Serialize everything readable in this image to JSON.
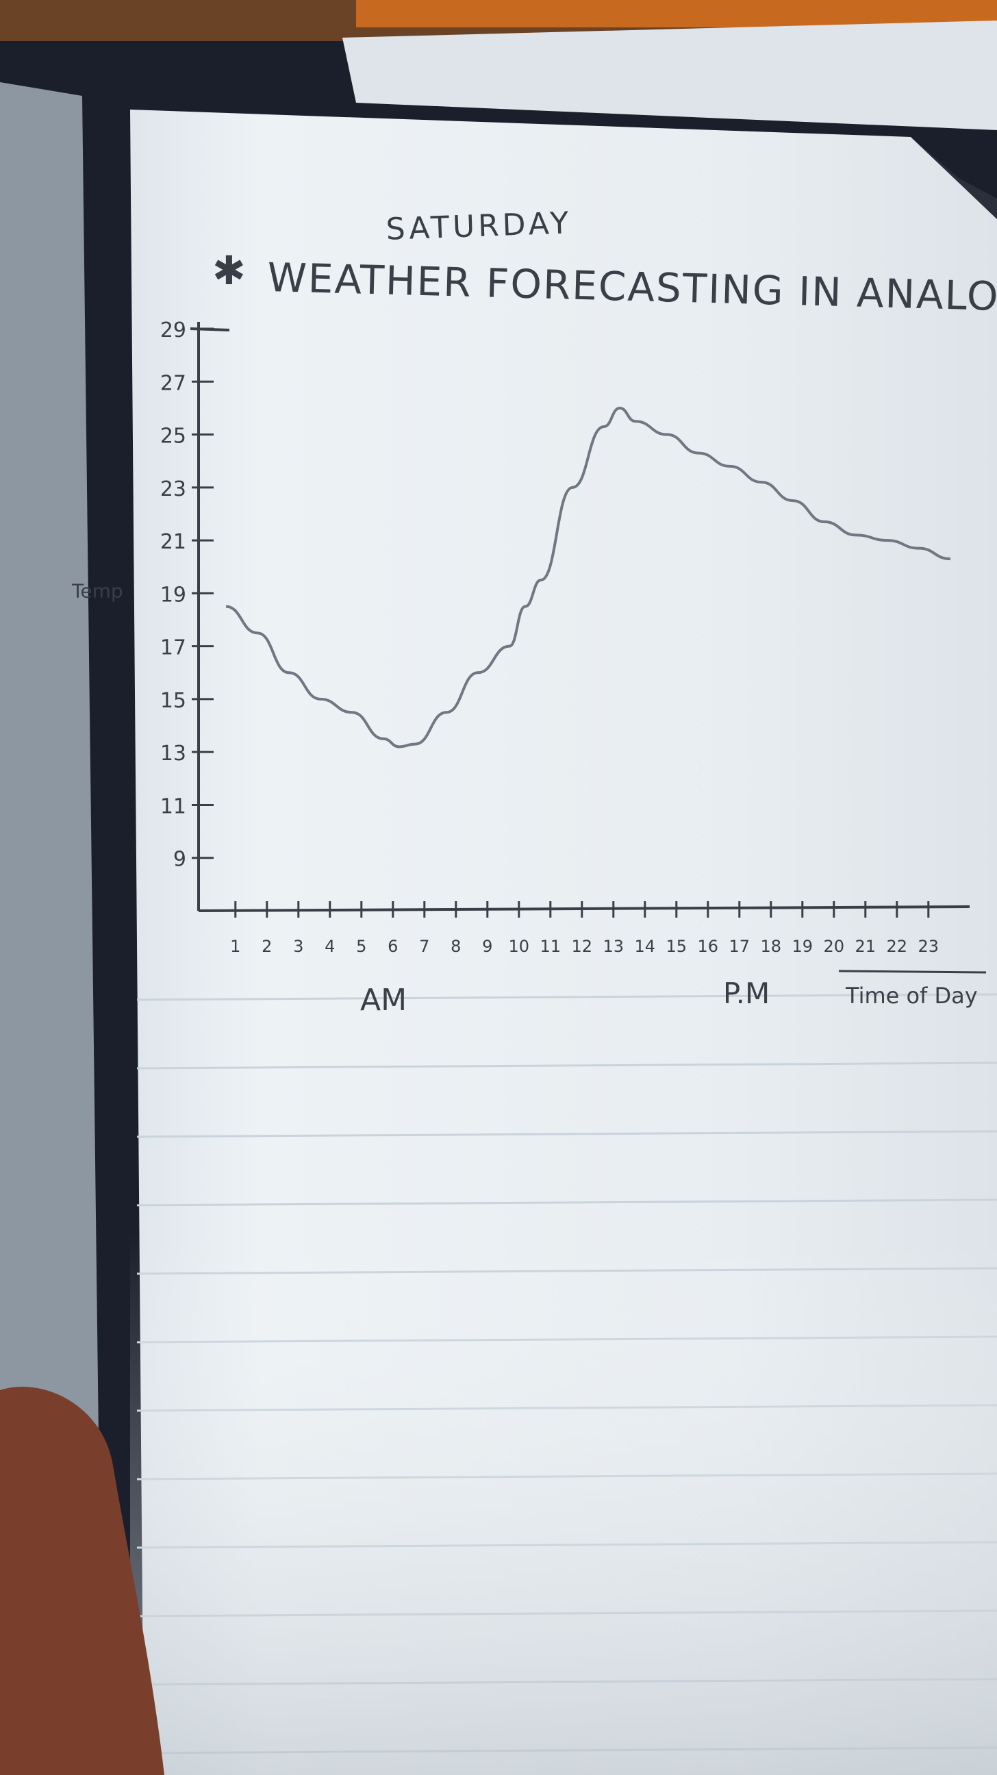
{
  "colors": {
    "ink": "#3a3f47",
    "pencil": "#6f7782",
    "paper": "#e9eef2",
    "rule": "#c9d3db"
  },
  "page": {
    "heading_top": "SATURDAY",
    "heading_main": "WEATHER FORECASTING IN ANALOG:"
  },
  "chart_data": {
    "type": "line",
    "title": "SATURDAY WEATHER FORECASTING IN ANALOG:",
    "ylabel": "Temp",
    "xlabel": "Time of Day",
    "x_groups": [
      "AM",
      "P.M"
    ],
    "ylim": [
      7,
      29
    ],
    "xlim": [
      0,
      24
    ],
    "y_ticks": [
      "29",
      "27",
      "25",
      "23",
      "21",
      "19",
      "17",
      "15",
      "13",
      "11",
      "9"
    ],
    "y_tick_values": [
      29,
      27,
      25,
      23,
      21,
      19,
      17,
      15,
      13,
      11,
      9
    ],
    "x_ticks": [
      "1",
      "2",
      "3",
      "4",
      "5",
      "6",
      "7",
      "8",
      "9",
      "10",
      "11",
      "12",
      "13",
      "14",
      "15",
      "16",
      "17",
      "18",
      "19",
      "20",
      "21",
      "22",
      "23"
    ],
    "grid": false,
    "series": [
      {
        "x": [
          0,
          1,
          2,
          3,
          4,
          5,
          5.5,
          6,
          7,
          8,
          9,
          9.5,
          10,
          11,
          12,
          12.5,
          13,
          14,
          15,
          16,
          17,
          18,
          19,
          20,
          21,
          22,
          23
        ],
        "values": [
          18.5,
          17.5,
          16,
          15,
          14.5,
          13.5,
          13.2,
          13.3,
          14.5,
          16,
          17,
          18.5,
          19.5,
          23,
          25.3,
          26,
          25.5,
          25,
          24.3,
          23.8,
          23.2,
          22.5,
          21.7,
          21.2,
          21,
          20.7,
          20.3
        ]
      }
    ]
  }
}
